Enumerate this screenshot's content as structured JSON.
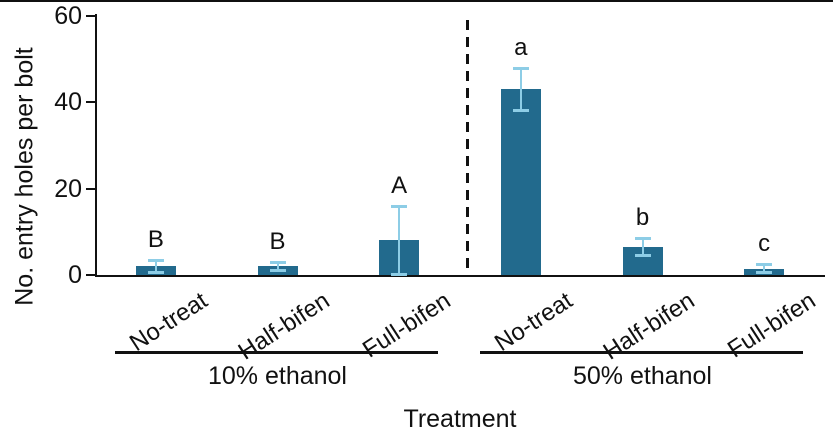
{
  "figure": {
    "background": "#ffffff",
    "border_top_color": "#101010"
  },
  "chart_data": {
    "type": "bar",
    "title": "",
    "xlabel": "Treatment",
    "ylabel": "No. entry holes per bolt",
    "ylim": [
      0,
      60
    ],
    "yticks": [
      0,
      20,
      40,
      60
    ],
    "grid": false,
    "legend": "none",
    "bar_color": "#226a8d",
    "error_color": "#8dcde6",
    "axis_color": "#111111",
    "separator": "dashed vertical line between ethanol groups",
    "groups": [
      {
        "label": "10% ethanol",
        "bars": [
          {
            "category": "No-treat",
            "value": 2,
            "error": 1.5,
            "letter": "B"
          },
          {
            "category": "Half-bifen",
            "value": 2,
            "error": 1,
            "letter": "B"
          },
          {
            "category": "Full-bifen",
            "value": 8,
            "error": 8,
            "letter": "A"
          }
        ]
      },
      {
        "label": "50% ethanol",
        "bars": [
          {
            "category": "No-treat",
            "value": 43,
            "error": 5,
            "letter": "a"
          },
          {
            "category": "Half-bifen",
            "value": 6.5,
            "error": 2,
            "letter": "b"
          },
          {
            "category": "Full-bifen",
            "value": 1.5,
            "error": 1,
            "letter": "c"
          }
        ]
      }
    ]
  }
}
